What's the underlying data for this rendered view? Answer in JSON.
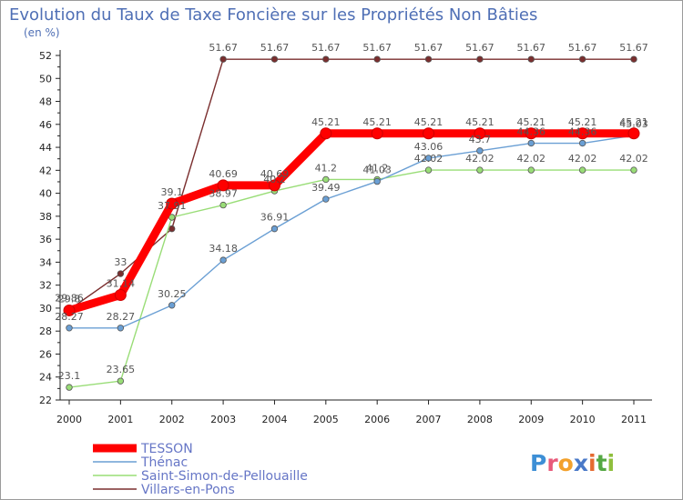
{
  "chart_data": {
    "type": "line",
    "title": "Evolution du Taux de Taxe Foncière sur les Propriétés Non Bâties",
    "ylabel": "(en %)",
    "xlabel": "",
    "ylim": [
      22,
      52
    ],
    "yticks": [
      22,
      24,
      26,
      28,
      30,
      32,
      34,
      36,
      38,
      40,
      42,
      44,
      46,
      48,
      50,
      52
    ],
    "grid": false,
    "legend_position": "bottom-left",
    "x": [
      "2000",
      "2001",
      "2002",
      "2003",
      "2004",
      "2005",
      "2006",
      "2007",
      "2008",
      "2009",
      "2010",
      "2011"
    ],
    "series": [
      {
        "name": "Villars-en-Pons",
        "color": "#7a2e2e",
        "values": [
          29.86,
          33,
          36.91,
          51.67,
          51.67,
          51.67,
          51.67,
          51.67,
          51.67,
          51.67,
          51.67,
          51.67
        ],
        "labels": [
          "29.86",
          "33",
          "",
          "51.67",
          "51.67",
          "51.67",
          "51.67",
          "51.67",
          "51.67",
          "51.67",
          "51.67",
          "51.67"
        ]
      },
      {
        "name": "Saint-Simon-de-Pellouaille",
        "color": "#99dd77",
        "values": [
          23.1,
          23.65,
          37.91,
          38.97,
          40.2,
          41.2,
          41.2,
          42.02,
          42.02,
          42.02,
          42.02,
          42.02
        ],
        "labels": [
          "23.1",
          "23.65",
          "37.91",
          "38.97",
          "40.2",
          "41.2",
          "41.2",
          "42.02",
          "42.02",
          "42.02",
          "42.02",
          "42.02"
        ]
      },
      {
        "name": "Thénac",
        "color": "#6a9fd4",
        "values": [
          28.27,
          28.27,
          30.25,
          34.18,
          36.91,
          39.49,
          41.03,
          43.06,
          43.7,
          44.36,
          44.36,
          45.03
        ],
        "labels": [
          "28.27",
          "28.27",
          "30.25",
          "34.18",
          "36.91",
          "39.49",
          "41.03",
          "43.06",
          "43.7",
          "44.36",
          "44.36",
          "45.03"
        ]
      },
      {
        "name": "TESSON",
        "color": "#ff0000",
        "values": [
          29.8,
          31.14,
          39.1,
          40.69,
          40.69,
          45.21,
          45.21,
          45.21,
          45.21,
          45.21,
          45.21,
          45.21
        ],
        "labels": [
          "29.8",
          "31.14",
          "39.1",
          "40.69",
          "40.69",
          "45.21",
          "45.21",
          "45.21",
          "45.21",
          "45.21",
          "45.21",
          "45.21"
        ]
      }
    ],
    "legend": [
      "TESSON",
      "Thénac",
      "Saint-Simon-de-Pellouaille",
      "Villars-en-Pons"
    ]
  },
  "logo": {
    "text": "Proxiti"
  }
}
